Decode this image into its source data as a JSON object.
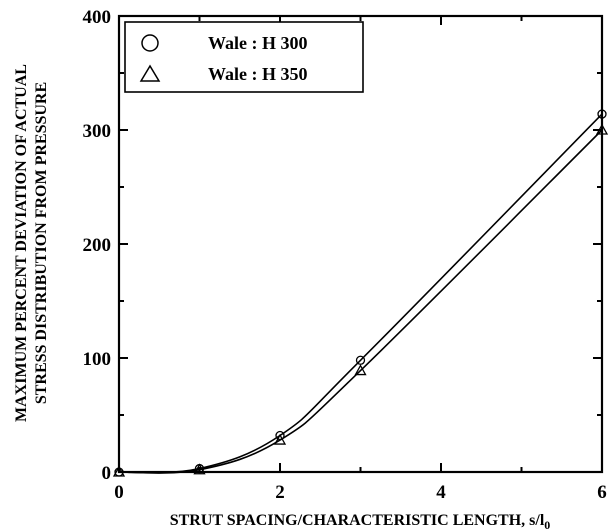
{
  "chart_data": {
    "type": "line",
    "title": "",
    "xlabel_main": "STRUT SPACING/CHARACTERISTIC LENGTH, s/l",
    "xlabel_subscript": "0",
    "ylabel_lines": [
      "MAXIMUM PERCENT DEVIATION OF ACTUAL",
      "STRESS DISTRIBUTION FROM PRESSURE"
    ],
    "xlim": [
      0,
      6
    ],
    "ylim": [
      0,
      400
    ],
    "x_ticks": [
      0,
      2,
      4,
      6
    ],
    "y_ticks": [
      0,
      100,
      200,
      300,
      400
    ],
    "grid": false,
    "legend_position": "top-left",
    "series": [
      {
        "name": "Wale : H 300",
        "marker": "circle",
        "x": [
          0,
          1,
          2,
          3,
          6
        ],
        "y": [
          0,
          3,
          32,
          98,
          314
        ]
      },
      {
        "name": "Wale : H 350",
        "marker": "triangle",
        "x": [
          0,
          1,
          2,
          3,
          6
        ],
        "y": [
          0,
          2,
          28,
          89,
          300
        ]
      }
    ]
  }
}
